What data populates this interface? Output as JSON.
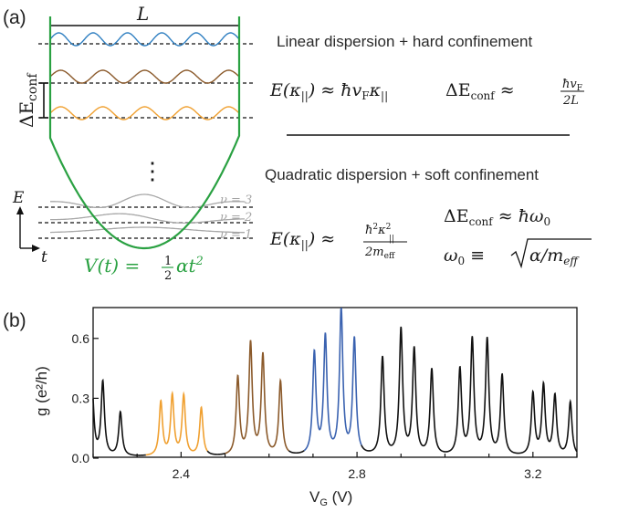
{
  "panel_a": {
    "label": "(a)",
    "well_width_label": "L",
    "delta_e_label": "ΔE",
    "delta_e_sub": "conf",
    "energy_axis_label": "E",
    "time_axis_label": "t",
    "dots": "⋮",
    "nu_labels": [
      "ν = 3",
      "ν = 2",
      "ν = 1"
    ],
    "potential_formula": {
      "lhs": "V(t) = ",
      "frac_num": "1",
      "frac_den": "2",
      "rhs": "αt",
      "rhs_sup": "2"
    },
    "linear_heading": "Linear dispersion + hard confinement",
    "linear_energy": {
      "lhs": "E(κ",
      "lhs_sub": "||",
      "mid": ") ≈ ħv",
      "mid_sub": "F",
      "rhs": "κ",
      "rhs_sub": "||"
    },
    "linear_delta": {
      "lhs": "ΔE",
      "lhs_sub": "conf",
      "approx": " ≈ ",
      "num": "ħv",
      "num_sub": "F",
      "den": "2L"
    },
    "quadratic_heading": "Quadratic dispersion + soft confinement",
    "quadratic_energy": {
      "lhs": "E(κ",
      "lhs_sub": "||",
      "mid": ") ≈ ",
      "num": "ħ",
      "num_sup": "2",
      "num2": "κ",
      "num2_sup": "2",
      "num2_sub": "||",
      "den": "2m",
      "den_sub": "eff"
    },
    "quadratic_delta": {
      "lhs": "ΔE",
      "lhs_sub": "conf",
      "rhs": " ≈ ħω",
      "rhs_sub": "0"
    },
    "omega_def": {
      "lhs": "ω",
      "lhs_sub": "0",
      "eq": " ≡ ",
      "inner": "α/m",
      "inner_sub": "eff"
    },
    "colors": {
      "blue_mode": "#2f7fc1",
      "brown_mode": "#8b5a2b",
      "orange_mode": "#f0a030",
      "grey_mode": "#a8a8a8",
      "potential": "#2aa142",
      "dashed": "#111111"
    }
  },
  "panel_b": {
    "label": "(b)",
    "chart_data": {
      "type": "line",
      "title": "",
      "xlabel": "V",
      "xlabel_sub": "G",
      "xlabel_unit": " (V)",
      "ylabel": "g (e²/h)",
      "xlim": [
        2.2,
        3.3
      ],
      "ylim": [
        0.0,
        0.75
      ],
      "xticks": [
        2.4,
        2.8,
        3.2
      ],
      "xtick_labels": [
        "2.4",
        "2.8",
        "3.2"
      ],
      "yticks": [
        0.0,
        0.3,
        0.6
      ],
      "ytick_labels": [
        "0.0",
        "0.3",
        "0.6"
      ],
      "background": 0.005,
      "peak_width": 0.0045,
      "peaks": [
        {
          "x": 2.198,
          "h": 0.33,
          "color": "#111111"
        },
        {
          "x": 2.222,
          "h": 0.37,
          "color": "#111111"
        },
        {
          "x": 2.262,
          "h": 0.22,
          "color": "#111111"
        },
        {
          "x": 2.354,
          "h": 0.27,
          "color": "#f0a030"
        },
        {
          "x": 2.38,
          "h": 0.3,
          "color": "#f0a030"
        },
        {
          "x": 2.406,
          "h": 0.3,
          "color": "#f0a030"
        },
        {
          "x": 2.446,
          "h": 0.24,
          "color": "#f0a030"
        },
        {
          "x": 2.529,
          "h": 0.39,
          "color": "#8b5a2b"
        },
        {
          "x": 2.558,
          "h": 0.56,
          "color": "#8b5a2b"
        },
        {
          "x": 2.586,
          "h": 0.5,
          "color": "#8b5a2b"
        },
        {
          "x": 2.626,
          "h": 0.37,
          "color": "#8b5a2b"
        },
        {
          "x": 2.703,
          "h": 0.51,
          "color": "#3a62b0"
        },
        {
          "x": 2.728,
          "h": 0.59,
          "color": "#3a62b0"
        },
        {
          "x": 2.764,
          "h": 0.73,
          "color": "#3a62b0"
        },
        {
          "x": 2.794,
          "h": 0.58,
          "color": "#3a62b0"
        },
        {
          "x": 2.858,
          "h": 0.49,
          "color": "#111111"
        },
        {
          "x": 2.9,
          "h": 0.63,
          "color": "#111111"
        },
        {
          "x": 2.93,
          "h": 0.53,
          "color": "#111111"
        },
        {
          "x": 2.97,
          "h": 0.43,
          "color": "#111111"
        },
        {
          "x": 3.034,
          "h": 0.43,
          "color": "#111111"
        },
        {
          "x": 3.062,
          "h": 0.58,
          "color": "#111111"
        },
        {
          "x": 3.096,
          "h": 0.58,
          "color": "#111111"
        },
        {
          "x": 3.13,
          "h": 0.4,
          "color": "#111111"
        },
        {
          "x": 3.2,
          "h": 0.31,
          "color": "#111111"
        },
        {
          "x": 3.224,
          "h": 0.35,
          "color": "#111111"
        },
        {
          "x": 3.25,
          "h": 0.3,
          "color": "#111111"
        },
        {
          "x": 3.285,
          "h": 0.27,
          "color": "#111111"
        }
      ],
      "segments": [
        {
          "from": 2.2,
          "to": 2.32,
          "color": "#111111"
        },
        {
          "from": 2.32,
          "to": 2.46,
          "color": "#f0a030"
        },
        {
          "from": 2.46,
          "to": 2.5,
          "color": "#111111"
        },
        {
          "from": 2.5,
          "to": 2.645,
          "color": "#8b5a2b"
        },
        {
          "from": 2.645,
          "to": 2.68,
          "color": "#111111"
        },
        {
          "from": 2.68,
          "to": 2.81,
          "color": "#3a62b0"
        },
        {
          "from": 2.81,
          "to": 3.3,
          "color": "#111111"
        }
      ]
    }
  }
}
